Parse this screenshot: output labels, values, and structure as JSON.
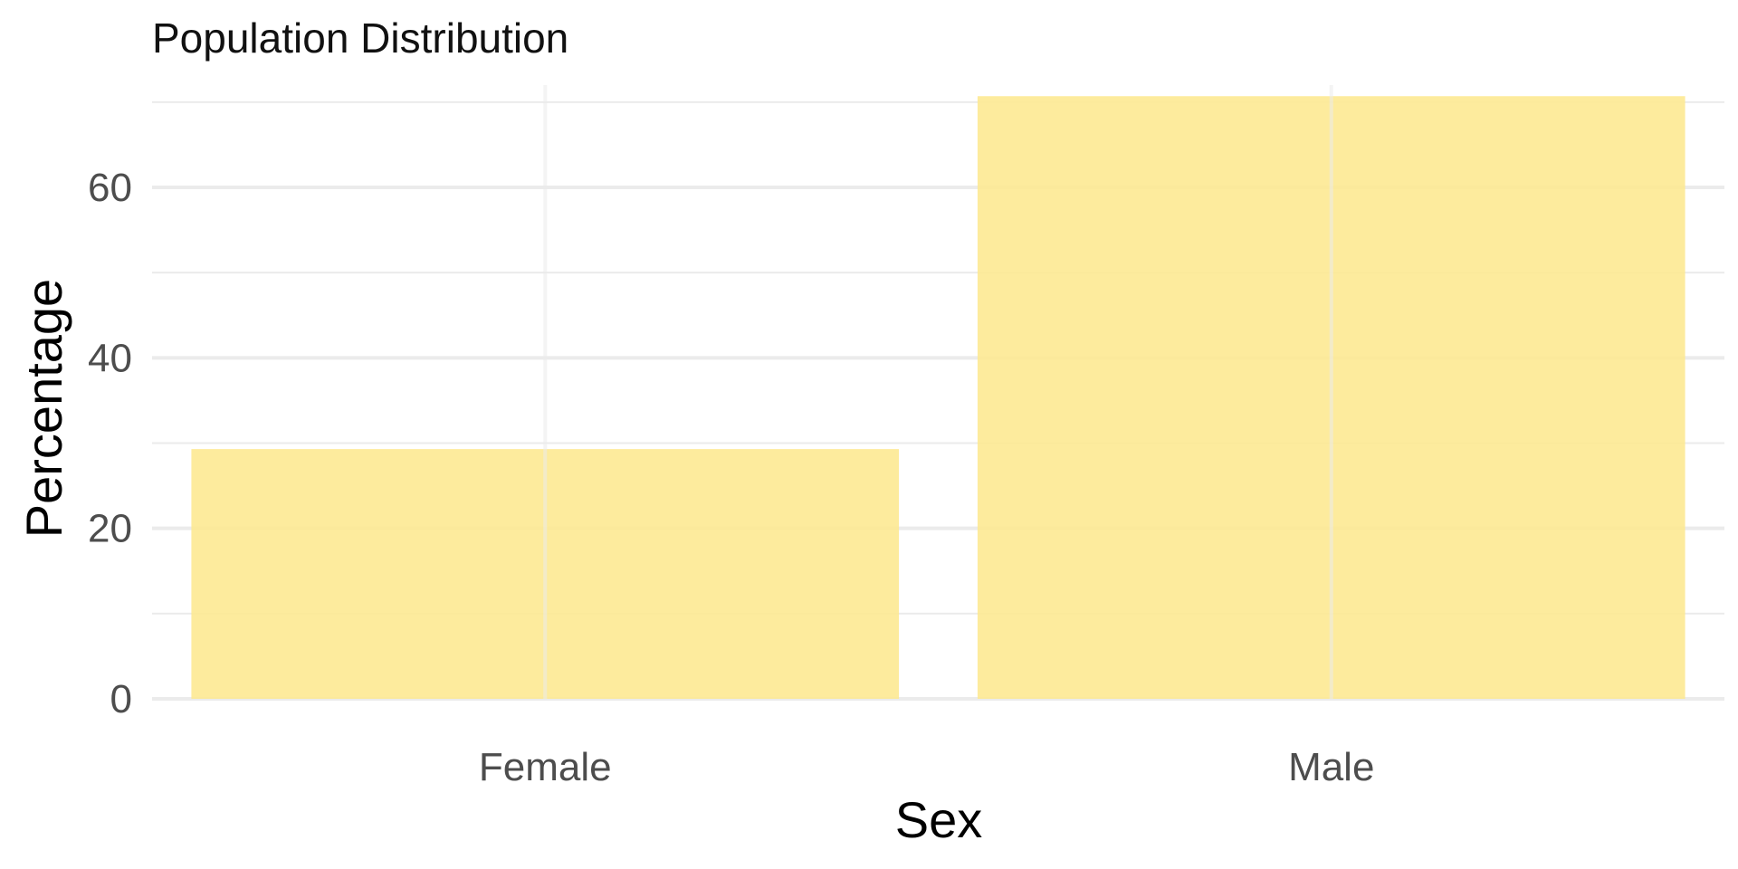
{
  "chart_data": {
    "type": "bar",
    "title": "Population Distribution",
    "xlabel": "Sex",
    "ylabel": "Percentage",
    "categories": [
      "Female",
      "Male"
    ],
    "values": [
      29.3,
      70.7
    ],
    "ylim": [
      0,
      72
    ],
    "y_ticks": [
      0,
      20,
      40,
      60
    ],
    "y_minor_ticks": [
      10,
      30,
      50,
      70
    ],
    "y_tick_labels": [
      "0",
      "20",
      "40",
      "60"
    ],
    "grid": true,
    "legend": "none",
    "bar_color": "#fde992",
    "bar_opacity": 0.9,
    "grid_color": "#ebebeb"
  }
}
